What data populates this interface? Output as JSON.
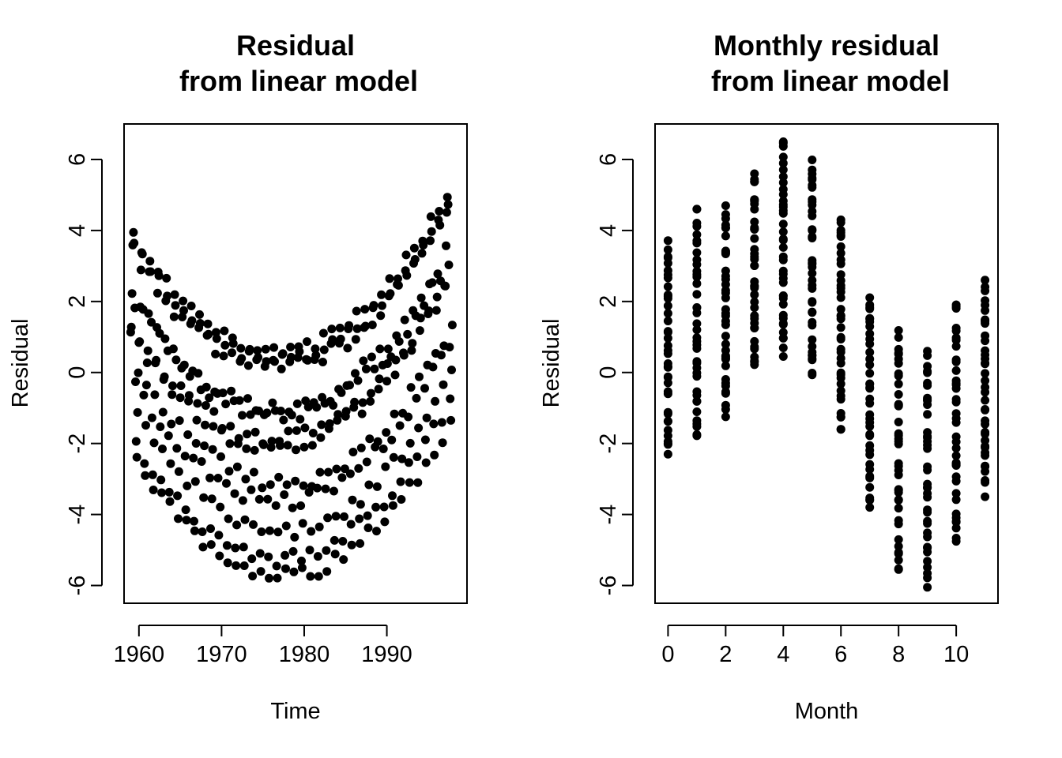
{
  "chart_data": [
    {
      "type": "scatter",
      "title": [
        "Residual",
        "from linear model"
      ],
      "xlabel": "Time",
      "ylabel": "Residual",
      "xlim": [
        1958.2,
        1999.7
      ],
      "ylim": [
        -6.5,
        7.0
      ],
      "xticks": [
        1960,
        1970,
        1980,
        1990
      ],
      "xtick_labels": [
        "1960",
        "1970",
        "1980",
        "1990"
      ],
      "yticks": [
        -6,
        -4,
        -2,
        0,
        2,
        4,
        6
      ],
      "ytick_labels": [
        "-6",
        "-4",
        "-2",
        "0",
        "2",
        "4",
        "6"
      ],
      "grid": false,
      "monthly_residual_by_year": {
        "start_year": 1959,
        "month_offsets": [
          -2.3,
          -2.0,
          -1.2,
          0.0,
          0.5,
          0.2,
          -1.4,
          -3.8,
          -5.4,
          -5.9,
          -4.6,
          -3.3
        ],
        "note_range": "1959 to 1997"
      }
    },
    {
      "type": "scatter",
      "title": [
        "Monthly residual",
        "from linear model"
      ],
      "xlabel": "Month",
      "ylabel": "Residual",
      "xlim": [
        -0.45,
        11.45
      ],
      "ylim": [
        -6.5,
        7.0
      ],
      "xticks": [
        0,
        2,
        4,
        6,
        8,
        10
      ],
      "xtick_labels": [
        "0",
        "2",
        "4",
        "6",
        "8",
        "10"
      ],
      "yticks": [
        -6,
        -4,
        -2,
        0,
        2,
        4,
        6
      ],
      "ytick_labels": [
        "-6",
        "-4",
        "-2",
        "0",
        "2",
        "4",
        "6"
      ],
      "grid": false,
      "month_ranges": [
        {
          "month": 0,
          "min": -2.4,
          "max": 3.8
        },
        {
          "month": 1,
          "min": -2.0,
          "max": 4.6
        },
        {
          "month": 2,
          "min": -1.25,
          "max": 4.7
        },
        {
          "month": 3,
          "min": 0.0,
          "max": 5.6
        },
        {
          "month": 4,
          "min": 0.45,
          "max": 6.5
        },
        {
          "month": 5,
          "min": -0.2,
          "max": 6.0
        },
        {
          "month": 6,
          "min": -1.6,
          "max": 4.45
        },
        {
          "month": 7,
          "min": -3.8,
          "max": 2.3
        },
        {
          "month": 8,
          "min": -5.55,
          "max": 1.2
        },
        {
          "month": 9,
          "min": -6.05,
          "max": 0.6
        },
        {
          "month": 10,
          "min": -4.8,
          "max": 1.95
        },
        {
          "month": 11,
          "min": -3.5,
          "max": 2.6
        }
      ]
    }
  ]
}
